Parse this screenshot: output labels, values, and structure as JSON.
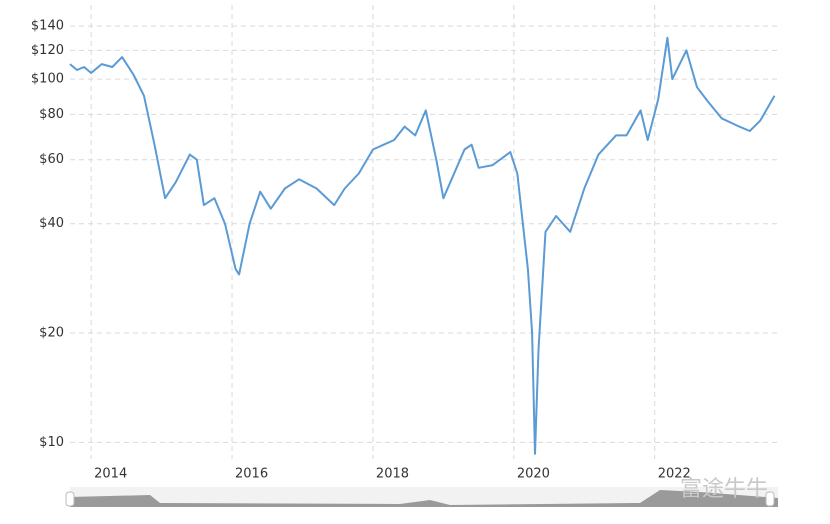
{
  "chart_data": {
    "type": "line",
    "color": "#5b9bd5",
    "log_y": true,
    "grid": true,
    "x": [
      2013.7,
      2013.8,
      2013.9,
      2014.0,
      2014.15,
      2014.3,
      2014.44,
      2014.6,
      2014.75,
      2014.9,
      2015.05,
      2015.2,
      2015.4,
      2015.5,
      2015.6,
      2015.75,
      2015.9,
      2016.05,
      2016.1,
      2016.25,
      2016.4,
      2016.55,
      2016.75,
      2016.95,
      2017.2,
      2017.45,
      2017.6,
      2017.8,
      2018.0,
      2018.3,
      2018.45,
      2018.6,
      2018.75,
      2018.9,
      2019.0,
      2019.3,
      2019.4,
      2019.5,
      2019.7,
      2019.95,
      2020.05,
      2020.2,
      2020.26,
      2020.3,
      2020.35,
      2020.45,
      2020.6,
      2020.8,
      2021.0,
      2021.2,
      2021.45,
      2021.6,
      2021.8,
      2021.9,
      2022.05,
      2022.18,
      2022.25,
      2022.45,
      2022.6,
      2022.75,
      2022.95,
      2023.2,
      2023.35,
      2023.5,
      2023.7
    ],
    "values": [
      110,
      106,
      108,
      104,
      110,
      108,
      115,
      103,
      90,
      66,
      47,
      52,
      62,
      60,
      45,
      47,
      40,
      30,
      29,
      40,
      49,
      44,
      50,
      53,
      50,
      45,
      50,
      55,
      64,
      68,
      74,
      70,
      82,
      60,
      47,
      64,
      66,
      57,
      58,
      63,
      55,
      30,
      20,
      9.3,
      18,
      38,
      42,
      38,
      50,
      62,
      70,
      70,
      82,
      68,
      88,
      130,
      100,
      120,
      95,
      87,
      78,
      74,
      72,
      77,
      90
    ],
    "xlim": [
      2013.7,
      2023.75
    ],
    "xticks": [
      2014,
      2016,
      2018,
      2020,
      2022
    ],
    "ylim": [
      9,
      160
    ],
    "yticks": [
      {
        "value": 10,
        "label": "$10"
      },
      {
        "value": 20,
        "label": "$20"
      },
      {
        "value": 40,
        "label": "$40"
      },
      {
        "value": 60,
        "label": "$60"
      },
      {
        "value": 80,
        "label": "$80"
      },
      {
        "value": 100,
        "label": "$100"
      },
      {
        "value": 120,
        "label": "$120"
      },
      {
        "value": 140,
        "label": "$140"
      }
    ],
    "watermark": "富途牛牛"
  }
}
